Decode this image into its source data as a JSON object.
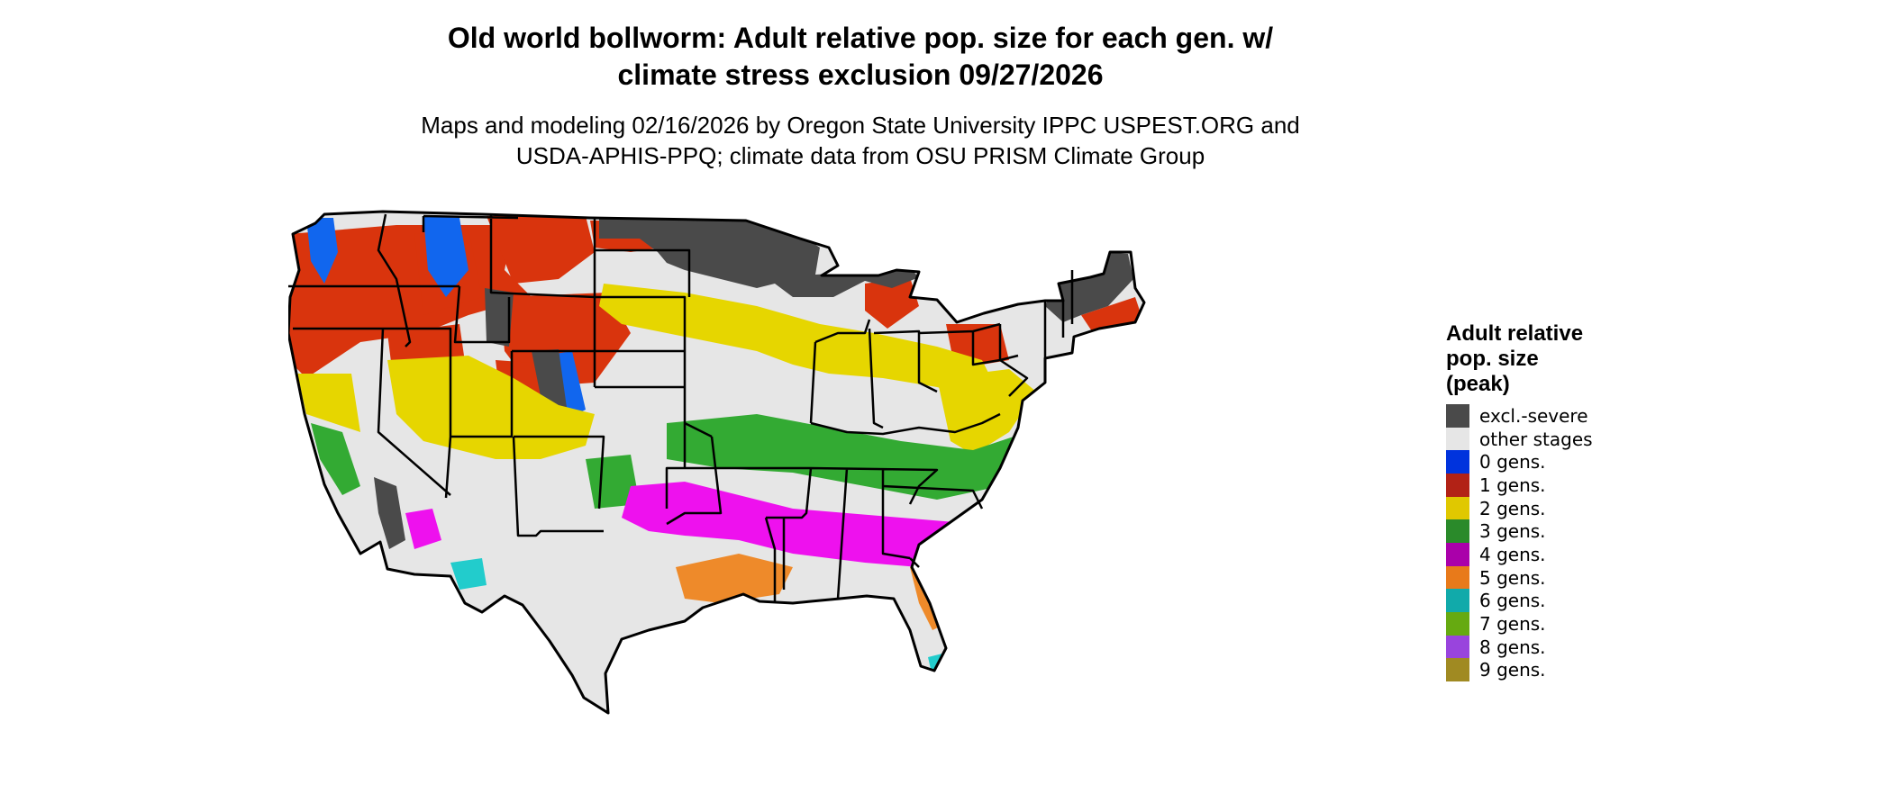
{
  "title": {
    "line1": "Old world bollworm: Adult relative pop. size for each gen. w/",
    "line2": "climate stress exclusion 09/27/2026"
  },
  "subtitle": {
    "line1": "Maps and modeling 02/16/2026 by Oregon State University IPPC USPEST.ORG and",
    "line2": "USDA-APHIS-PPQ; climate data from OSU PRISM Climate Group"
  },
  "legend": {
    "title_line1": "Adult relative",
    "title_line2": "pop. size",
    "title_line3": "(peak)",
    "items": [
      {
        "label": "excl.-severe",
        "color": "#4a4a4a"
      },
      {
        "label": "other stages",
        "color": "#e6e6e6"
      },
      {
        "label": "0 gens.",
        "color": "#0033dd"
      },
      {
        "label": "1 gens.",
        "color": "#b22216"
      },
      {
        "label": "2 gens.",
        "color": "#e0c800"
      },
      {
        "label": "3 gens.",
        "color": "#2a8a2a"
      },
      {
        "label": "4 gens.",
        "color": "#aa00aa"
      },
      {
        "label": "5 gens.",
        "color": "#e87a1a"
      },
      {
        "label": "6 gens.",
        "color": "#11aaaa"
      },
      {
        "label": "7 gens.",
        "color": "#66aa11"
      },
      {
        "label": "8 gens.",
        "color": "#9944dd"
      },
      {
        "label": "9 gens.",
        "color": "#a08a22"
      }
    ]
  },
  "map_colors": {
    "background": "#e6e6e6",
    "excluded": "#4a4a4a",
    "gen0": "#1166ee",
    "gen1": "#d9340d",
    "gen2": "#e6d600",
    "gen3": "#33aa33",
    "gen4": "#ee11ee",
    "gen5": "#ee8a2a",
    "gen6": "#22cccc",
    "outline": "#000000"
  }
}
